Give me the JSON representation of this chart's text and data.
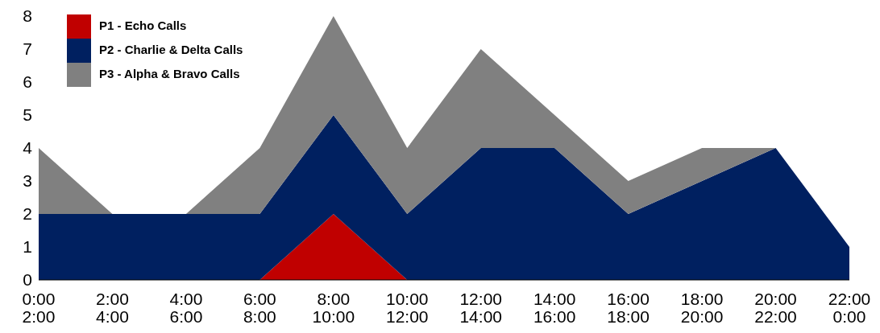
{
  "chart_data": {
    "type": "area",
    "stacked": true,
    "categories": [
      "0:00\n2:00",
      "2:00\n4:00",
      "4:00\n6:00",
      "6:00\n8:00",
      "8:00\n10:00",
      "10:00\n12:00",
      "12:00\n14:00",
      "14:00\n16:00",
      "16:00\n18:00",
      "18:00\n20:00",
      "20:00\n22:00",
      "22:00\n0:00"
    ],
    "series": [
      {
        "name": "P1 - Echo Calls",
        "color": "#c00000",
        "values": [
          0,
          0,
          0,
          0,
          2,
          0,
          0,
          0,
          0,
          0,
          0,
          0
        ]
      },
      {
        "name": "P2 - Charlie & Delta Calls",
        "color": "#002060",
        "values": [
          2,
          2,
          2,
          2,
          3,
          2,
          4,
          4,
          2,
          3,
          4,
          1
        ]
      },
      {
        "name": "P3 - Alpha & Bravo Calls",
        "color": "#808080",
        "values": [
          2,
          0,
          0,
          2,
          3,
          2,
          3,
          1,
          1,
          1,
          0,
          0
        ]
      }
    ],
    "ylim": [
      0,
      8
    ],
    "yticks": [
      0,
      1,
      2,
      3,
      4,
      5,
      6,
      7,
      8
    ],
    "grid": false,
    "legend": "top left"
  }
}
